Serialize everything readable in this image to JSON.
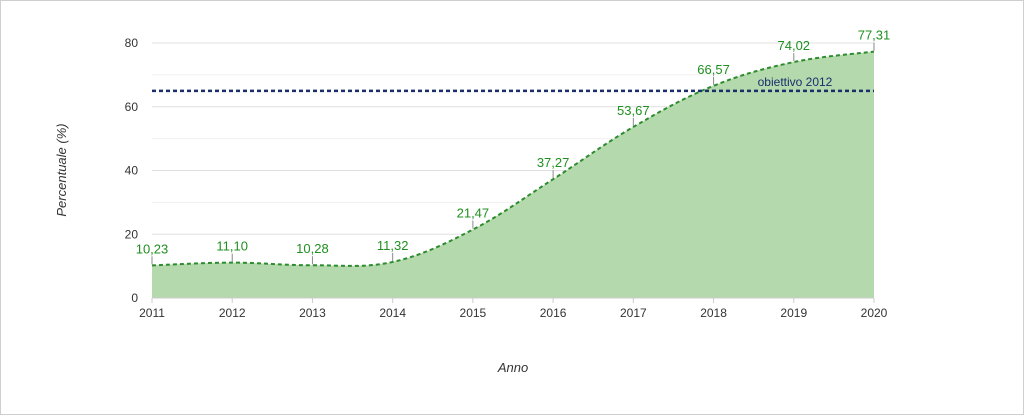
{
  "chart_data": {
    "type": "area",
    "title": "",
    "xlabel": "Anno",
    "ylabel": "Percentuale (%)",
    "x": [
      "2011",
      "2012",
      "2013",
      "2014",
      "2015",
      "2016",
      "2017",
      "2018",
      "2019",
      "2020"
    ],
    "series": [
      {
        "values": [
          10.23,
          11.1,
          10.28,
          11.32,
          21.47,
          37.27,
          53.67,
          66.57,
          74.02,
          77.31
        ],
        "labels": [
          "10,23",
          "11,10",
          "10,28",
          "11,32",
          "21,47",
          "37,27",
          "53,67",
          "66,57",
          "74,02",
          "77,31"
        ],
        "color": "#2e8b2e",
        "fill": "#b3d9ad"
      }
    ],
    "reference_line": {
      "label": "obiettivo 2012",
      "value": 65,
      "color": "#1a2e6b"
    },
    "ylim": [
      0,
      80
    ],
    "yticks": [
      "0",
      "20",
      "40",
      "60",
      "80"
    ],
    "grid": true,
    "legend": "none"
  }
}
